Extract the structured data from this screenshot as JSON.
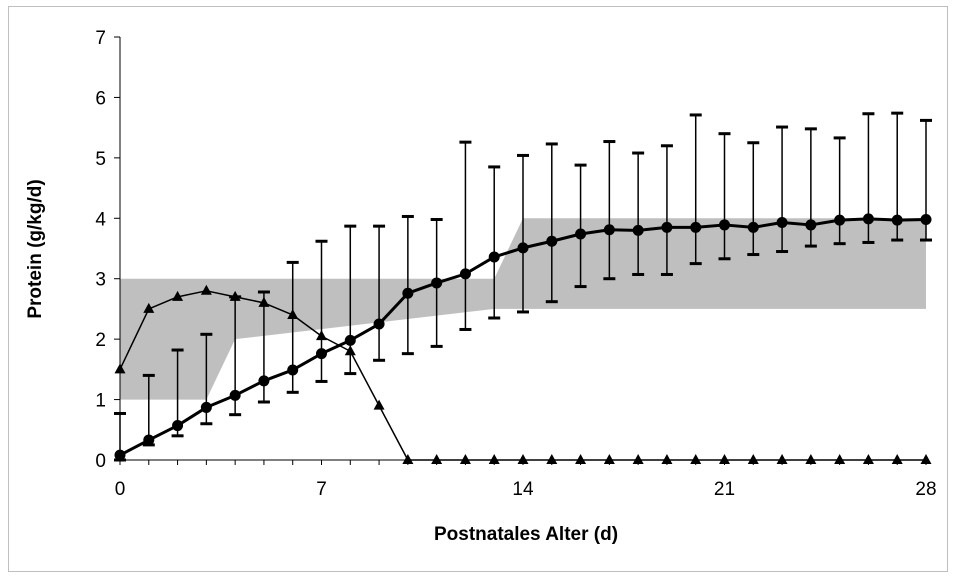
{
  "chart_data": {
    "type": "line",
    "title": "",
    "xlabel": "Postnatales Alter (d)",
    "ylabel": "Protein (g/kg/d)",
    "xlim": [
      0,
      28
    ],
    "ylim": [
      0,
      7
    ],
    "x_ticks": [
      "0",
      "7",
      "14",
      "21",
      "28"
    ],
    "y_ticks": [
      "0",
      "1",
      "2",
      "3",
      "4",
      "5",
      "6",
      "7"
    ],
    "grid": false,
    "legend": "none",
    "reference_band": {
      "color": "#bfbfbf",
      "x": [
        0,
        3,
        4,
        13,
        14,
        28
      ],
      "lower": [
        1.0,
        1.0,
        2.0,
        2.5,
        2.5,
        2.5
      ],
      "upper": [
        3.0,
        3.0,
        3.0,
        3.0,
        4.0,
        4.0
      ]
    },
    "series": [
      {
        "marker": "circle",
        "line_width": "thick",
        "x": [
          0,
          1,
          2,
          3,
          4,
          5,
          6,
          7,
          8,
          9,
          10,
          11,
          12,
          13,
          14,
          15,
          16,
          17,
          18,
          19,
          20,
          21,
          22,
          23,
          24,
          25,
          26,
          27,
          28
        ],
        "values": [
          0.08,
          0.33,
          0.57,
          0.87,
          1.07,
          1.31,
          1.49,
          1.76,
          1.98,
          2.25,
          2.76,
          2.93,
          3.08,
          3.36,
          3.51,
          3.62,
          3.74,
          3.81,
          3.8,
          3.85,
          3.85,
          3.89,
          3.85,
          3.93,
          3.89,
          3.97,
          3.99,
          3.97,
          3.98
        ],
        "error_upper": [
          0.77,
          1.4,
          1.82,
          2.08,
          2.7,
          2.78,
          3.27,
          3.62,
          3.87,
          3.87,
          4.03,
          3.98,
          5.26,
          4.85,
          5.04,
          5.23,
          4.88,
          5.27,
          5.08,
          5.2,
          5.71,
          5.4,
          5.25,
          5.51,
          5.48,
          5.33,
          5.73,
          5.74,
          5.62
        ],
        "error_lower": [
          0.0,
          0.25,
          0.4,
          0.6,
          0.75,
          0.96,
          1.12,
          1.3,
          1.43,
          1.65,
          1.76,
          1.88,
          2.16,
          2.35,
          2.45,
          2.62,
          2.87,
          3.0,
          3.07,
          3.07,
          3.25,
          3.33,
          3.4,
          3.45,
          3.54,
          3.58,
          3.6,
          3.64,
          3.64
        ]
      },
      {
        "marker": "triangle",
        "line_width": "thin",
        "x": [
          0,
          1,
          2,
          3,
          4,
          5,
          6,
          7,
          8,
          9,
          10,
          11,
          12,
          13,
          14,
          15,
          16,
          17,
          18,
          19,
          20,
          21,
          22,
          23,
          24,
          25,
          26,
          27,
          28
        ],
        "values": [
          1.5,
          2.5,
          2.7,
          2.8,
          2.7,
          2.6,
          2.4,
          2.05,
          1.8,
          0.9,
          0.0,
          0.0,
          0.0,
          0.0,
          0.0,
          0.0,
          0.0,
          0.0,
          0.0,
          0.0,
          0.0,
          0.0,
          0.0,
          0.0,
          0.0,
          0.0,
          0.0,
          0.0,
          0.0
        ]
      }
    ]
  }
}
